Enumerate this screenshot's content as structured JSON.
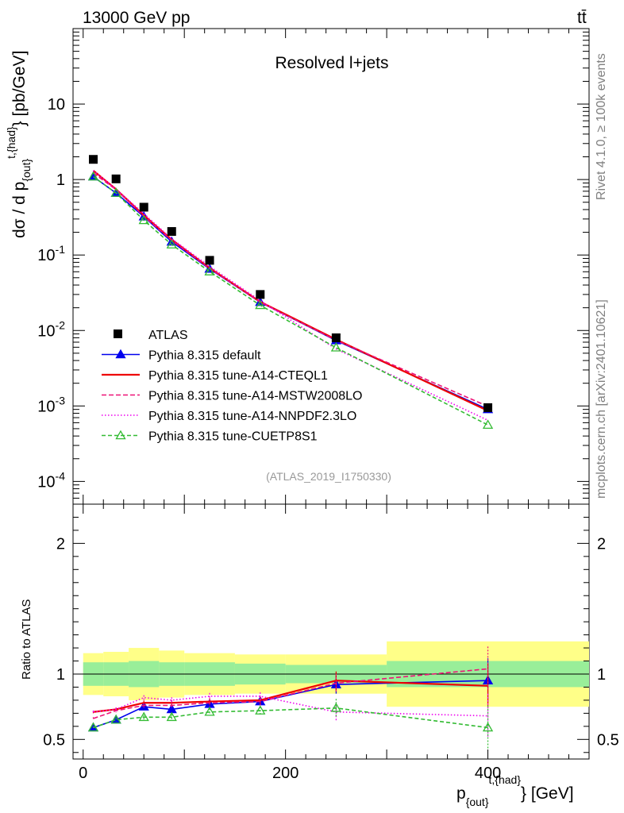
{
  "header": {
    "energy": "13000 GeV pp",
    "process": "tt̄",
    "rivet": "Rivet 4.1.0, ≥ 100k events",
    "source": "mcplots.cern.ch [arXiv:2401.10621]"
  },
  "chart_data": {
    "type": "line",
    "title": "Resolved l+jets",
    "analysis": "(ATLAS_2019_I1750330)",
    "ylabel_parts": {
      "main": "dσ / d p",
      "sub": "{out}",
      "sup": "t,{had}",
      "unit": "} [pb/GeV]"
    },
    "xlabel_parts": {
      "main": "p",
      "sub": "{out}",
      "sup": "t,{had}",
      "unit": "} [GeV]"
    },
    "ratio_ylabel": "Ratio to ATLAS",
    "xlim": [
      -10,
      500
    ],
    "ylim_log": [
      5e-05,
      100
    ],
    "ratio_ylim": [
      0.35,
      2.3
    ],
    "x_ticks": [
      "0",
      "200",
      "400"
    ],
    "y_ticks": [
      "10",
      "1",
      "10^-1",
      "10^-2",
      "10^-3",
      "10^-4"
    ],
    "ratio_ticks": [
      "0.5",
      "1",
      "2"
    ],
    "bin_edges": [
      0,
      20,
      45,
      75,
      100,
      150,
      200,
      300,
      500
    ],
    "data": {
      "name": "ATLAS",
      "x": [
        10,
        32.5,
        60,
        87.5,
        125,
        175,
        250,
        400
      ],
      "y": [
        1.85,
        1.02,
        0.43,
        0.205,
        0.085,
        0.03,
        0.008,
        0.00095
      ],
      "stat_band": [
        0.09,
        0.09,
        0.1,
        0.09,
        0.09,
        0.08,
        0.07,
        0.1
      ],
      "total_band": [
        0.16,
        0.17,
        0.2,
        0.18,
        0.16,
        0.15,
        0.15,
        0.25
      ]
    },
    "series": [
      {
        "name": "Pythia 8.315 default",
        "color": "#0000ee",
        "dash": "",
        "marker": "triangle-filled",
        "ratio": [
          0.59,
          0.65,
          0.75,
          0.73,
          0.77,
          0.79,
          0.92,
          0.95
        ]
      },
      {
        "name": "Pythia 8.315 tune-A14-CTEQL1",
        "color": "#ee0000",
        "dash": "",
        "marker": "none",
        "ratio": [
          0.71,
          0.73,
          0.78,
          0.78,
          0.79,
          0.8,
          0.95,
          0.91
        ]
      },
      {
        "name": "Pythia 8.315 tune-A14-MSTW2008LO",
        "color": "#ee1177",
        "dash": "6,3",
        "marker": "none",
        "ratio": [
          0.66,
          0.72,
          0.76,
          0.76,
          0.78,
          0.79,
          0.93,
          1.04
        ]
      },
      {
        "name": "Pythia 8.315 tune-A14-NNPDF2.3LO",
        "color": "#ee00ee",
        "dash": "1.5,2.5",
        "marker": "none",
        "ratio": [
          0.71,
          0.73,
          0.82,
          0.8,
          0.83,
          0.83,
          0.71,
          0.68
        ]
      },
      {
        "name": "Pythia 8.315 tune-CUETP8S1",
        "color": "#33bb33",
        "dash": "5,3",
        "marker": "triangle-open",
        "ratio": [
          0.59,
          0.65,
          0.67,
          0.67,
          0.71,
          0.72,
          0.74,
          0.59
        ]
      }
    ]
  }
}
